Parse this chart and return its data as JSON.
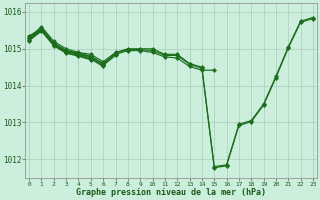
{
  "title": "Graphe pression niveau de la mer (hPa)",
  "background_color": "#cceedd",
  "grid_color": "#aaccbb",
  "line_color": "#1a6e1a",
  "ylim": [
    1011.5,
    1016.25
  ],
  "yticks": [
    1012,
    1013,
    1014,
    1015,
    1016
  ],
  "xlim": [
    -0.3,
    23.3
  ],
  "xticks": [
    0,
    1,
    2,
    3,
    4,
    5,
    6,
    7,
    8,
    9,
    10,
    11,
    12,
    13,
    14,
    15,
    16,
    17,
    18,
    19,
    20,
    21,
    22,
    23
  ],
  "series": [
    {
      "x": [
        0,
        1,
        2,
        3,
        4,
        5,
        6,
        7,
        8,
        9,
        10,
        11,
        12,
        13,
        14,
        15,
        16,
        17,
        18,
        19,
        20,
        21,
        22,
        23
      ],
      "y": [
        1015.3,
        1015.6,
        1015.2,
        1015.0,
        1014.9,
        1014.85,
        1014.65,
        1014.9,
        1015.0,
        1015.0,
        1015.0,
        1014.85,
        1014.85,
        1014.6,
        1014.5,
        1011.8,
        1011.85,
        1012.95,
        1013.05,
        1013.5,
        1014.25,
        1015.05,
        1015.75,
        1015.85
      ]
    },
    {
      "x": [
        0,
        1,
        2,
        3,
        4,
        5,
        6,
        7,
        8,
        9,
        10,
        11,
        12,
        13,
        14,
        15,
        16,
        17,
        18,
        19,
        20,
        21,
        22,
        23
      ],
      "y": [
        1015.35,
        1015.55,
        1015.15,
        1014.95,
        1014.88,
        1014.8,
        1014.6,
        1014.88,
        1014.98,
        1014.98,
        1014.95,
        1014.82,
        1014.82,
        1014.58,
        1014.47,
        1011.77,
        1011.82,
        1012.92,
        1013.02,
        1013.47,
        1014.22,
        1015.02,
        1015.72,
        1015.82
      ]
    },
    {
      "x": [
        0,
        1,
        2,
        3,
        4,
        5,
        6,
        7,
        8,
        9,
        10,
        11,
        12,
        13,
        14,
        15
      ],
      "y": [
        1015.3,
        1015.55,
        1015.15,
        1014.95,
        1014.87,
        1014.78,
        1014.58,
        1014.85,
        1014.95,
        1014.95,
        1014.9,
        1014.78,
        1014.75,
        1014.52,
        1014.42,
        1014.42
      ]
    },
    {
      "x": [
        0,
        1,
        2,
        3,
        4,
        5,
        6,
        7
      ],
      "y": [
        1015.28,
        1015.52,
        1015.12,
        1014.92,
        1014.85,
        1014.75,
        1014.55,
        1014.82
      ]
    },
    {
      "x": [
        0,
        1,
        2,
        3,
        4,
        5,
        6
      ],
      "y": [
        1015.25,
        1015.5,
        1015.1,
        1014.9,
        1014.82,
        1014.72,
        1014.52
      ]
    },
    {
      "x": [
        0,
        1,
        2,
        3,
        4,
        5
      ],
      "y": [
        1015.22,
        1015.48,
        1015.08,
        1014.88,
        1014.8,
        1014.7
      ]
    }
  ]
}
